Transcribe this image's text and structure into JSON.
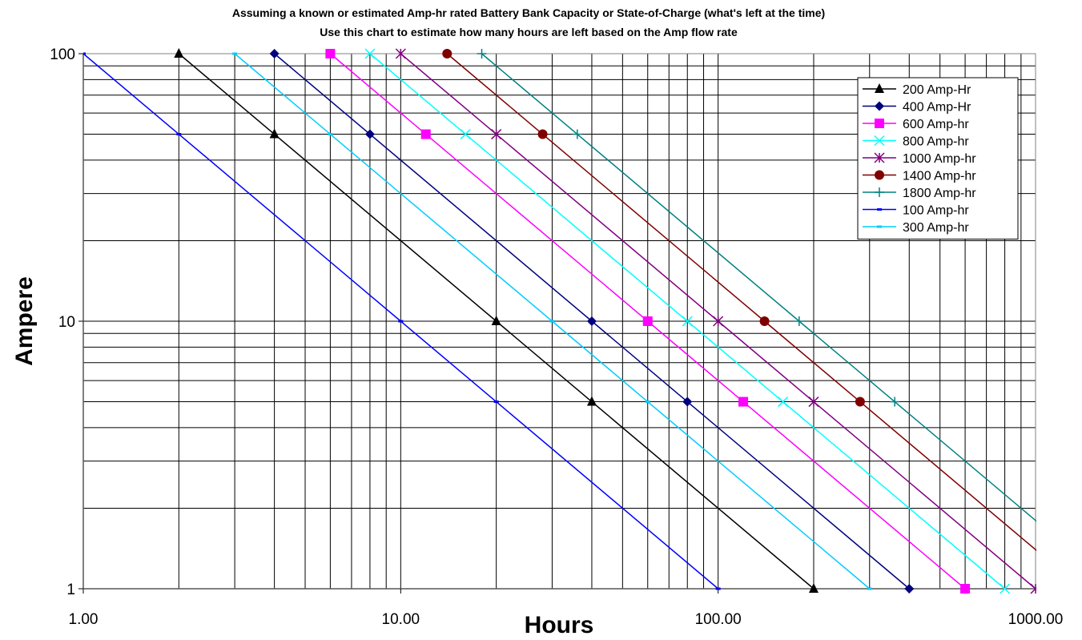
{
  "chart_data": {
    "type": "line",
    "title": "Assuming a known or estimated Amp-hr rated Battery Bank Capacity or State-of-Charge (what's left at the time)",
    "subtitle": "Use this chart to estimate how many hours are left based on the Amp flow rate",
    "xlabel": "Hours",
    "ylabel": "Ampere",
    "x_scale": "log",
    "y_scale": "log",
    "xlim": [
      1,
      1000
    ],
    "ylim": [
      1,
      100
    ],
    "x_ticks": [
      "1.00",
      "10.00",
      "100.00",
      "1000.00"
    ],
    "y_ticks": [
      "1",
      "10",
      "100"
    ],
    "grid": true,
    "legend_position": "top-right",
    "amps": [
      100,
      50,
      10,
      5,
      1
    ],
    "series": [
      {
        "name": "200 Amp-Hr",
        "color": "#000000",
        "marker": "triangle",
        "x": [
          2,
          4,
          20,
          40,
          200
        ],
        "y": [
          100,
          50,
          10,
          5,
          1
        ]
      },
      {
        "name": "400 Amp-Hr",
        "color": "#000080",
        "marker": "diamond",
        "x": [
          4,
          8,
          40,
          80,
          400
        ],
        "y": [
          100,
          50,
          10,
          5,
          1
        ]
      },
      {
        "name": "600 Amp-hr",
        "color": "#ff00ff",
        "marker": "square",
        "x": [
          6,
          12,
          60,
          120,
          600
        ],
        "y": [
          100,
          50,
          10,
          5,
          1
        ]
      },
      {
        "name": "800 Amp-hr",
        "color": "#00ffff",
        "marker": "x",
        "x": [
          8,
          16,
          80,
          160,
          800
        ],
        "y": [
          100,
          50,
          10,
          5,
          1
        ]
      },
      {
        "name": "1000 Amp-hr",
        "color": "#800080",
        "marker": "star",
        "x": [
          10,
          20,
          100,
          200,
          1000
        ],
        "y": [
          100,
          50,
          10,
          5,
          1
        ]
      },
      {
        "name": "1400 Amp-hr",
        "color": "#800000",
        "marker": "circle",
        "x": [
          14,
          28,
          140,
          280,
          1400
        ],
        "y": [
          100,
          50,
          10,
          5,
          1
        ]
      },
      {
        "name": "1800 Amp-hr",
        "color": "#008080",
        "marker": "plus",
        "x": [
          18,
          36,
          180,
          360,
          1800
        ],
        "y": [
          100,
          50,
          10,
          5,
          1
        ]
      },
      {
        "name": "100 Amp-hr",
        "color": "#0000ff",
        "marker": "dash",
        "x": [
          1,
          2,
          10,
          20,
          100
        ],
        "y": [
          100,
          50,
          10,
          5,
          1
        ]
      },
      {
        "name": "300 Amp-hr",
        "color": "#00ccff",
        "marker": "dash",
        "x": [
          3,
          6,
          30,
          60,
          300
        ],
        "y": [
          100,
          50,
          10,
          5,
          1
        ]
      }
    ]
  }
}
